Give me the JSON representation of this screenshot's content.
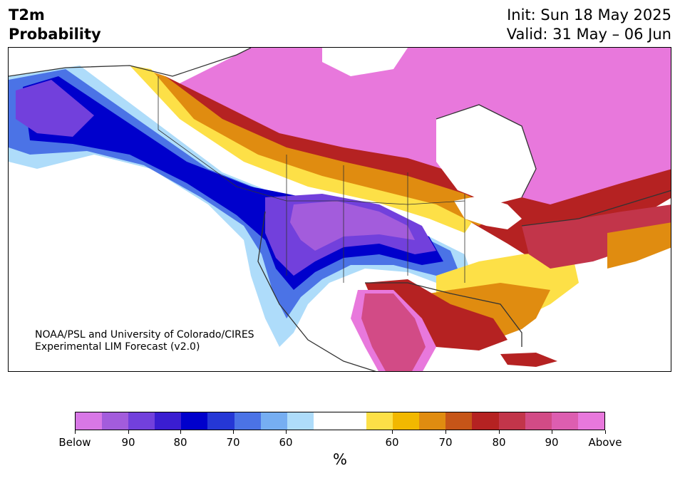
{
  "header": {
    "title_line1": "T2m",
    "title_line2": "Probability",
    "init_text": "Init: Sun 18 May 2025",
    "valid_text": "Valid: 31 May – 06 Jun"
  },
  "credit": {
    "line1": "NOAA/PSL and University of Colorado/CIRES",
    "line2": "Experimental LIM Forecast (v2.0)"
  },
  "colorbar": {
    "colors": [
      "#d877e6",
      "#a35cdc",
      "#7240dc",
      "#3a1dd1",
      "#0000cc",
      "#2537d6",
      "#4b73e6",
      "#76aef2",
      "#aedcfa",
      "#ffffff",
      "#ffffff",
      "#fde047",
      "#f2b800",
      "#e08c10",
      "#c65518",
      "#b52222",
      "#c2354a",
      "#d24b86",
      "#dd5eb0",
      "#e878dc"
    ],
    "tick_labels": [
      "Below",
      "90",
      "80",
      "70",
      "60",
      "60",
      "70",
      "80",
      "90",
      "Above"
    ],
    "unit": "%"
  },
  "map": {
    "region": "North America",
    "colors": {
      "above_high": "#e878dc",
      "above_mid": "#c2354a",
      "above_low": "#e08c10",
      "above_min": "#fde047",
      "below_high": "#a35cdc",
      "below_mid": "#0000cc",
      "below_low": "#4b73e6",
      "below_min": "#aedcfa",
      "land_outline": "#333333"
    }
  }
}
